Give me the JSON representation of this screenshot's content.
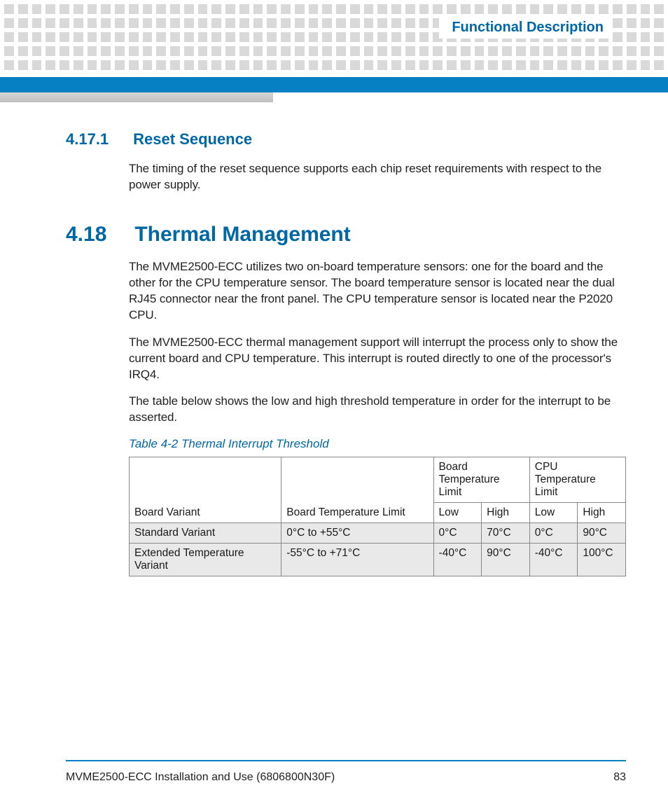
{
  "header": {
    "chapter_title": "Functional Description"
  },
  "colors": {
    "accent": "#0067a6",
    "bar": "#0780c3",
    "dot": "#d9d9d9",
    "zebra": "#e9e9e9",
    "border": "#888888",
    "text": "#222222"
  },
  "sections": {
    "s1": {
      "num": "4.17.1",
      "title": "Reset Sequence",
      "p1": "The timing of the reset sequence supports each chip reset requirements with respect to the power supply."
    },
    "s2": {
      "num": "4.18",
      "title": "Thermal Management",
      "p1": "The MVME2500-ECC utilizes two on-board temperature sensors: one for the board and the other for the CPU temperature sensor. The board temperature sensor is located near the dual RJ45 connector near the front panel. The CPU temperature sensor is located near the P2020 CPU.",
      "p2": "The MVME2500-ECC thermal management support will interrupt the process only to show the current board and CPU temperature. This interrupt is routed directly to one of the processor's IRQ4.",
      "p3": "The table below shows the low and high threshold temperature in order for the interrupt to be asserted."
    }
  },
  "table": {
    "caption": "Table 4-2 Thermal Interrupt Threshold",
    "header_groups": {
      "board_group": "Board Temperature Limit",
      "cpu_group": "CPU Temperature Limit"
    },
    "header_cols": {
      "variant": "Board Variant",
      "range": "Board Temperature Limit",
      "low": "Low",
      "high": "High"
    },
    "rows": [
      {
        "variant": "Standard Variant",
        "range": "0°C to +55°C",
        "board_low": "0°C",
        "board_high": "70°C",
        "cpu_low": "0°C",
        "cpu_high": "90°C"
      },
      {
        "variant": "Extended Temperature Variant",
        "range": "-55°C  to +71°C",
        "board_low": "-40°C",
        "board_high": "90°C",
        "cpu_low": "-40°C",
        "cpu_high": "100°C"
      }
    ]
  },
  "footer": {
    "doc_title": "MVME2500-ECC Installation and Use (6806800N30F)",
    "page_number": "83"
  },
  "decor": {
    "dot_rows": 5,
    "dots_per_row": 48
  }
}
